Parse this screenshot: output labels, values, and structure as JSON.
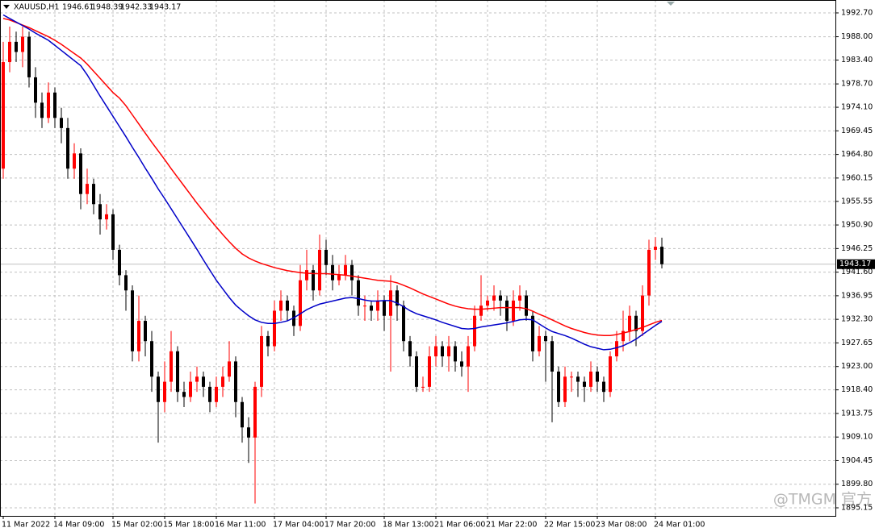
{
  "chart_data": {
    "type": "candlestick",
    "title": "XAUUSD,H1",
    "watermark": "@TMGM 官方",
    "categories": [
      "11 Mar 2022",
      null,
      null,
      null,
      null,
      null,
      null,
      null,
      "14 Mar 09:00",
      null,
      null,
      null,
      null,
      null,
      null,
      null,
      null,
      "15 Mar 02:00",
      null,
      null,
      null,
      null,
      null,
      null,
      null,
      "15 Mar 18:00",
      null,
      null,
      null,
      null,
      null,
      null,
      null,
      "16 Mar 11:00",
      null,
      null,
      null,
      null,
      null,
      null,
      null,
      null,
      "17 Mar 04:00",
      null,
      null,
      null,
      null,
      null,
      null,
      null,
      "17 Mar 20:00",
      null,
      null,
      null,
      null,
      null,
      null,
      null,
      null,
      "18 Mar 13:00",
      null,
      null,
      null,
      null,
      null,
      null,
      null,
      "21 Mar 06:00",
      null,
      null,
      null,
      null,
      null,
      null,
      null,
      "21 Mar 22:00",
      null,
      null,
      null,
      null,
      null,
      null,
      null,
      null,
      "22 Mar 15:00",
      null,
      null,
      null,
      null,
      null,
      null,
      null,
      "23 Mar 08:00",
      null,
      null,
      null,
      null,
      null,
      null,
      null,
      null,
      "24 Mar 01:00",
      null
    ],
    "open": [
      1962,
      1983,
      1987,
      1985,
      1988,
      1980,
      1975,
      1972,
      1977,
      1972,
      1970,
      1962,
      1965,
      1957,
      1959,
      1955,
      1952,
      1953,
      1946,
      1941,
      1938,
      1926,
      1932,
      1928,
      1921,
      1916,
      1920,
      1926,
      1918,
      1917,
      1920,
      1921,
      1919,
      1916,
      1919,
      1921,
      1924,
      1916,
      1911,
      1909,
      1919,
      1929,
      1927,
      1934,
      1936,
      1934,
      1931,
      1940,
      1942,
      1938,
      1946,
      1943,
      1940,
      1941,
      1943,
      1940,
      1935,
      1935,
      1934,
      1936,
      1933,
      1938,
      1935,
      1928,
      1925,
      1919,
      1919,
      1925,
      1927,
      1925,
      1927,
      1924,
      1923,
      1927,
      1933,
      1935,
      1936,
      1937,
      1936,
      1932,
      1936,
      1937,
      1933,
      1926,
      1929,
      1928,
      1922,
      1916,
      1921,
      1921,
      1920,
      1919,
      1922,
      1920,
      1918,
      1925,
      1928,
      1930,
      1933,
      1930,
      1937,
      1946,
      1946.61
    ],
    "high": [
      1987,
      1990,
      1989,
      1990,
      1989,
      1982,
      1977,
      1979,
      1978,
      1974,
      1972,
      1967,
      1966,
      1962,
      1960,
      1957,
      1955,
      1954,
      1947,
      1942,
      1939,
      1937,
      1933,
      1930,
      1922,
      1924,
      1930,
      1927,
      1920,
      1922,
      1923,
      1922,
      1920,
      1921,
      1923,
      1928,
      1925,
      1917,
      1913,
      1920,
      1931,
      1930,
      1936,
      1938,
      1937,
      1935,
      1943,
      1946,
      1943,
      1949,
      1948,
      1945,
      1943,
      1945,
      1944,
      1941,
      1937,
      1936,
      1938,
      1937,
      1941,
      1939,
      1936,
      1929,
      1926,
      1921,
      1927,
      1929,
      1928,
      1929,
      1928,
      1926,
      1929,
      1935,
      1941,
      1937,
      1939,
      1938,
      1937,
      1938,
      1939,
      1938,
      1934,
      1931,
      1930,
      1929,
      1923,
      1923,
      1922,
      1922,
      1921,
      1924,
      1923,
      1921,
      1926,
      1930,
      1934,
      1935,
      1934,
      1939,
      1948,
      1948.5,
      1948.39
    ],
    "low": [
      1960,
      1981,
      1983,
      1982,
      1978,
      1972,
      1970,
      1971,
      1970,
      1967,
      1960,
      1960,
      1954,
      1955,
      1953,
      1949,
      1950,
      1944,
      1939,
      1934,
      1924,
      1924,
      1925,
      1918,
      1908,
      1914,
      1918,
      1916,
      1915,
      1916,
      1918,
      1917,
      1914,
      1915,
      1917,
      1920,
      1913,
      1908,
      1904,
      1896,
      1917,
      1925,
      1926,
      1932,
      1932,
      1929,
      1930,
      1938,
      1936,
      1937,
      1941,
      1938,
      1939,
      1940,
      1937,
      1933,
      1932,
      1932,
      1932,
      1930,
      1922,
      1932,
      1926,
      1923,
      1918,
      1918,
      1918,
      1923,
      1923,
      1922,
      1922,
      1921,
      1918,
      1926,
      1932,
      1934,
      1934,
      1933,
      1930,
      1931,
      1934,
      1932,
      1924,
      1925,
      1920,
      1912,
      1915,
      1915,
      1918,
      1917,
      1916,
      1918,
      1918,
      1916,
      1917,
      1924,
      1926,
      1928,
      1927,
      1929,
      1935,
      1944,
      1942.33
    ],
    "close": [
      1983,
      1987,
      1985,
      1988,
      1980,
      1975,
      1972,
      1977,
      1972,
      1970,
      1962,
      1965,
      1957,
      1959,
      1955,
      1952,
      1953,
      1946,
      1941,
      1938,
      1926,
      1932,
      1928,
      1921,
      1916,
      1920,
      1926,
      1918,
      1917,
      1920,
      1921,
      1919,
      1916,
      1919,
      1921,
      1924,
      1916,
      1911,
      1909,
      1919,
      1929,
      1927,
      1934,
      1936,
      1934,
      1931,
      1940,
      1942,
      1938,
      1946,
      1943,
      1940,
      1941,
      1943,
      1940,
      1935,
      1935,
      1934,
      1936,
      1933,
      1938,
      1935,
      1928,
      1925,
      1919,
      1919,
      1925,
      1927,
      1925,
      1927,
      1924,
      1923,
      1927,
      1933,
      1935,
      1936,
      1937,
      1936,
      1932,
      1936,
      1937,
      1933,
      1926,
      1929,
      1928,
      1922,
      1916,
      1921,
      1921,
      1920,
      1919,
      1922,
      1920,
      1918,
      1925,
      1928,
      1930,
      1933,
      1930,
      1937,
      1946,
      1946.61,
      1943.17
    ],
    "up_color": "#ff0000",
    "down_color": "#000000",
    "moving_averages": [
      {
        "color": "#ff0000",
        "values": [
          1991.6,
          1991.3,
          1990.8,
          1990.3,
          1989.8,
          1989.2,
          1988.6,
          1988.0,
          1987.3,
          1986.5,
          1985.6,
          1984.7,
          1983.8,
          1982.6,
          1981.2,
          1979.8,
          1978.4,
          1977.0,
          1975.9,
          1974.4,
          1972.6,
          1970.8,
          1969.0,
          1967.2,
          1965.5,
          1963.8,
          1962.0,
          1960.3,
          1958.6,
          1956.9,
          1955.2,
          1953.6,
          1952.0,
          1950.5,
          1949.0,
          1947.6,
          1946.3,
          1945.2,
          1944.4,
          1943.8,
          1943.3,
          1942.9,
          1942.5,
          1942.2,
          1941.9,
          1941.7,
          1941.5,
          1941.4,
          1941.3,
          1941.3,
          1941.3,
          1941.2,
          1941.1,
          1941.0,
          1940.8,
          1940.6,
          1940.4,
          1940.2,
          1940.0,
          1939.9,
          1939.8,
          1939.5,
          1939.0,
          1938.5,
          1937.9,
          1937.3,
          1936.8,
          1936.3,
          1935.8,
          1935.3,
          1934.9,
          1934.6,
          1934.4,
          1934.3,
          1934.3,
          1934.4,
          1934.5,
          1934.6,
          1934.6,
          1934.6,
          1934.6,
          1934.4,
          1933.9,
          1933.3,
          1932.8,
          1932.2,
          1931.6,
          1931.0,
          1930.5,
          1930.1,
          1929.7,
          1929.4,
          1929.2,
          1929.1,
          1929.1,
          1929.3,
          1929.6,
          1929.9,
          1930.3,
          1930.7,
          1931.2,
          1931.7,
          1932.1
        ]
      },
      {
        "color": "#0000c8",
        "values": [
          1992.3,
          1991.6,
          1990.9,
          1990.2,
          1989.5,
          1988.7,
          1988.0,
          1987.3,
          1986.3,
          1985.3,
          1984.3,
          1983.3,
          1982.3,
          1980.5,
          1978.4,
          1976.3,
          1974.3,
          1972.3,
          1970.3,
          1968.3,
          1966.2,
          1964.2,
          1962.1,
          1960.1,
          1958.0,
          1956.1,
          1954.1,
          1952.1,
          1950.1,
          1948.1,
          1946.1,
          1944.0,
          1942.0,
          1940.0,
          1938.3,
          1936.6,
          1935.1,
          1934.0,
          1933.0,
          1932.2,
          1931.7,
          1931.5,
          1931.5,
          1931.7,
          1932.0,
          1932.6,
          1933.4,
          1934.2,
          1934.8,
          1935.3,
          1935.6,
          1935.9,
          1936.2,
          1936.5,
          1936.6,
          1936.4,
          1936.1,
          1935.9,
          1935.9,
          1936.0,
          1936.0,
          1935.5,
          1934.8,
          1934.0,
          1933.4,
          1933.0,
          1932.6,
          1932.2,
          1931.7,
          1931.3,
          1930.9,
          1930.5,
          1930.4,
          1930.5,
          1930.8,
          1931.0,
          1931.2,
          1931.4,
          1931.6,
          1931.9,
          1932.2,
          1932.3,
          1932.2,
          1931.4,
          1930.6,
          1929.9,
          1929.5,
          1929.1,
          1928.6,
          1928.0,
          1927.4,
          1926.9,
          1926.6,
          1926.3,
          1926.4,
          1926.7,
          1927.1,
          1927.7,
          1928.4,
          1929.3,
          1930.2,
          1931.1,
          1931.9
        ]
      }
    ],
    "last_price": 1943.17,
    "ylim": [
      1893.56,
      1995.24
    ],
    "yticks": [
      {
        "value": 1992.7,
        "label": "1992.70"
      },
      {
        "value": 1988,
        "label": "1988.00"
      },
      {
        "value": 1983.4,
        "label": "1983.40"
      },
      {
        "value": 1978.7,
        "label": "1978.70"
      },
      {
        "value": 1974.1,
        "label": "1974.10"
      },
      1969.45,
      {
        "value": 1964.8,
        "label": "1964.80"
      },
      1960.15,
      1955.55,
      {
        "value": 1950.9,
        "label": "1950.90"
      },
      1946.25,
      {
        "value": 1941.6,
        "label": "1941.60"
      },
      1936.95,
      {
        "value": 1932.3,
        "label": "1932.30"
      },
      1927.65,
      {
        "value": 1923,
        "label": "1923.00"
      },
      {
        "value": 1918.4,
        "label": "1918.40"
      },
      1913.75,
      {
        "value": 1909.1,
        "label": "1909.10"
      },
      1904.45,
      {
        "value": 1899.8,
        "label": "1899.80"
      },
      1895.15
    ],
    "grid": true
  }
}
